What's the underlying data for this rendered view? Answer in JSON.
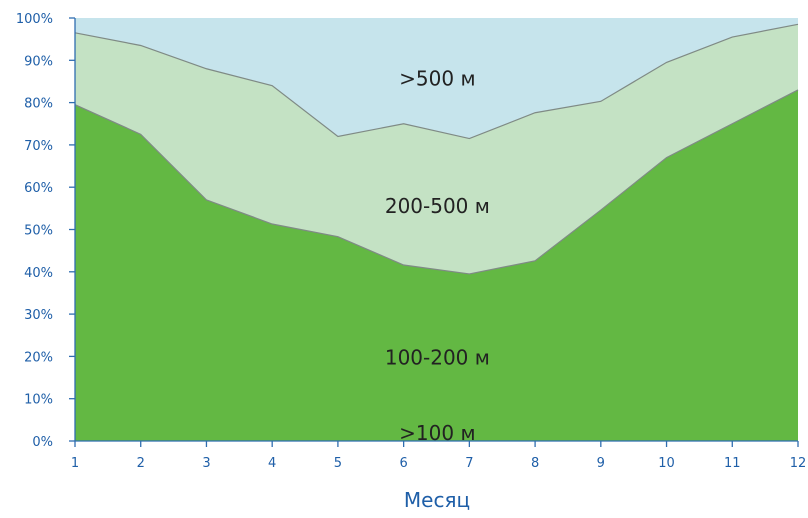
{
  "chart_data": {
    "type": "area",
    "stacked": true,
    "percent_scale": true,
    "x": [
      1,
      2,
      3,
      4,
      5,
      6,
      7,
      8,
      9,
      10,
      11,
      12
    ],
    "x_tick_labels": [
      "1",
      "2",
      "3",
      "4",
      "5",
      "6",
      "7",
      "8",
      "9",
      "10",
      "11",
      "12"
    ],
    "xlabel": "Месяц",
    "ylabel": "",
    "ylim": [
      0,
      100
    ],
    "y_tick_labels": [
      "0%",
      "10%",
      "20%",
      "30%",
      "40%",
      "50%",
      "60%",
      "70%",
      "80%",
      "90%",
      "100%"
    ],
    "grid": false,
    "series": [
      {
        "name": ">100 м",
        "values": [
          0,
          0,
          0,
          0,
          0,
          0,
          0,
          0,
          0,
          0,
          0,
          0
        ],
        "color": "#63b843"
      },
      {
        "name": "100-200 м",
        "values": [
          79.5,
          72.5,
          57,
          51.3,
          48.3,
          41.6,
          39.5,
          42.6,
          54.6,
          67,
          75,
          83
        ],
        "color": "#63b843"
      },
      {
        "name": "200-500 м",
        "values": [
          17,
          21,
          31,
          32.7,
          23.7,
          33.4,
          32,
          35,
          25.7,
          22.5,
          20.5,
          15.5
        ],
        "color": "#c4e2c4"
      },
      {
        "name": ">500 м",
        "values": [
          3.5,
          6.5,
          12,
          16,
          28,
          25,
          28.5,
          22.4,
          19.7,
          10.5,
          4.5,
          1.5
        ],
        "color": "#c6e4ec"
      }
    ],
    "boundary_line_color": "#7f8a85",
    "axis_color": "#2f6db0"
  }
}
